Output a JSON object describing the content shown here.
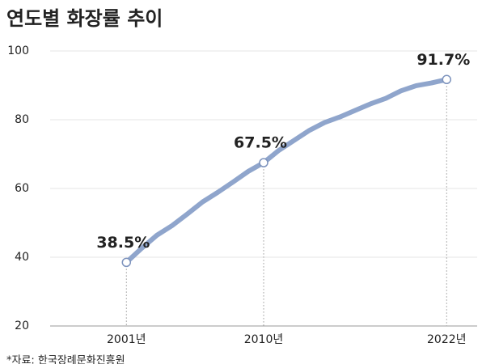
{
  "chart_data": {
    "type": "line",
    "title": "연도별 화장률 추이",
    "source": "*자료: 한국장례문화진흥원",
    "x": [
      2001,
      2002,
      2003,
      2004,
      2005,
      2006,
      2007,
      2008,
      2009,
      2010,
      2011,
      2012,
      2013,
      2014,
      2015,
      2016,
      2017,
      2018,
      2019,
      2020,
      2021,
      2022
    ],
    "series": [
      {
        "name": "화장률",
        "color": "#8fa5cc",
        "values": [
          38.5,
          42.6,
          46.4,
          49.2,
          52.6,
          56.1,
          58.9,
          61.9,
          65.0,
          67.5,
          71.1,
          74.0,
          76.9,
          79.2,
          80.8,
          82.7,
          84.6,
          86.2,
          88.4,
          89.9,
          90.7,
          91.7
        ],
        "value_labels": [
          "38.5%",
          null,
          null,
          null,
          null,
          null,
          null,
          null,
          null,
          "67.5%",
          null,
          null,
          null,
          null,
          null,
          null,
          null,
          null,
          null,
          null,
          null,
          "91.7%"
        ]
      }
    ],
    "xlim": [
      1996,
      2024
    ],
    "xticks": [
      {
        "value": 2001,
        "label": "2001년"
      },
      {
        "value": 2010,
        "label": "2010년"
      },
      {
        "value": 2022,
        "label": "2022년"
      }
    ],
    "ylim": [
      20,
      100
    ],
    "yticks": [
      20,
      40,
      60,
      80,
      100
    ],
    "grid": true
  }
}
